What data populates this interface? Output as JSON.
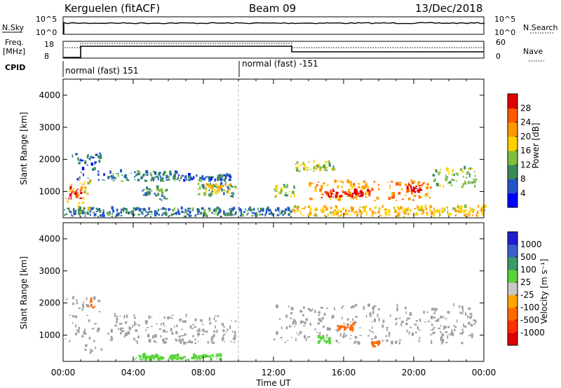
{
  "header": {
    "station": "Kerguelen (fitACF)",
    "beam": "Beam 09",
    "date": "13/Dec/2018"
  },
  "top_panels": {
    "nsky_label": "N.Sky",
    "nsearch_label": "N.Search",
    "nsky_ticks": [
      "10^5",
      "10^0"
    ],
    "nsearch_ticks": [
      "10^5",
      "10^0"
    ],
    "freq_label_1": "Freq.",
    "freq_label_2": "[MHz]",
    "freq_ticks": [
      "18",
      "8"
    ],
    "nave_label": "Nave",
    "nave_ticks": [
      "60",
      "0"
    ],
    "cpid_label": "CPID",
    "cpid_modes": [
      "normal (fast) 151",
      "normal (fast) -151"
    ]
  },
  "colors": {
    "scale": [
      "#0000ff",
      "#2255cc",
      "#3a8a5a",
      "#7fbf3f",
      "#ffd200",
      "#ff9900",
      "#ff5a00",
      "#e00000"
    ],
    "velocity_scale": [
      "#1e1ed2",
      "#3a5fcd",
      "#3c9a6a",
      "#5ad23a",
      "#c8c8c8",
      "#ffa500",
      "#ff6a00",
      "#ff3000",
      "#e00000"
    ],
    "ground": "#a0a0a0"
  },
  "chart_data": [
    {
      "type": "heatmap",
      "panel": "power",
      "ylabel": "Slant Range [km]",
      "xlim": [
        "00:00",
        "24:00"
      ],
      "ylim": [
        180,
        4500
      ],
      "x_ticks": [
        "00:00",
        "04:00",
        "08:00",
        "12:00",
        "16:00",
        "20:00",
        "00:00"
      ],
      "y_ticks": [
        1000,
        2000,
        3000,
        4000
      ],
      "colorbar_label": "Power [dB]",
      "colorbar_ticks": [
        4,
        8,
        12,
        16,
        20,
        24,
        28
      ],
      "colorbar_range": [
        0,
        30
      ],
      "regions": [
        {
          "t0": 0.1,
          "t1": 1.5,
          "r0": 400,
          "r1": 1300,
          "value": 18
        },
        {
          "t0": 0.3,
          "t1": 1.0,
          "r0": 700,
          "r1": 1100,
          "value": 26
        },
        {
          "t0": 0.5,
          "t1": 2.3,
          "r0": 1300,
          "r1": 2200,
          "value": 6
        },
        {
          "t0": 2.5,
          "t1": 6.5,
          "r0": 1300,
          "r1": 1600,
          "value": 8
        },
        {
          "t0": 4.5,
          "t1": 6.0,
          "r0": 700,
          "r1": 1100,
          "value": 10
        },
        {
          "t0": 6.5,
          "t1": 9.5,
          "r0": 1300,
          "r1": 1500,
          "value": 6
        },
        {
          "t0": 7.5,
          "t1": 9.8,
          "r0": 800,
          "r1": 1200,
          "value": 10
        },
        {
          "t0": 8.0,
          "t1": 9.5,
          "r0": 900,
          "r1": 1200,
          "value": 18
        },
        {
          "t0": 12.0,
          "t1": 13.2,
          "r0": 800,
          "r1": 1200,
          "value": 14
        },
        {
          "t0": 13.2,
          "t1": 15.5,
          "r0": 1600,
          "r1": 1900,
          "value": 14
        },
        {
          "t0": 14.0,
          "t1": 18.0,
          "r0": 700,
          "r1": 1300,
          "value": 20
        },
        {
          "t0": 14.8,
          "t1": 17.5,
          "r0": 800,
          "r1": 1000,
          "value": 28
        },
        {
          "t0": 18.5,
          "t1": 21.0,
          "r0": 700,
          "r1": 1300,
          "value": 22
        },
        {
          "t0": 19.5,
          "t1": 20.5,
          "r0": 900,
          "r1": 1200,
          "value": 27
        },
        {
          "t0": 21.0,
          "t1": 23.5,
          "r0": 1100,
          "r1": 1700,
          "value": 12
        },
        {
          "t0": 13.0,
          "t1": 24.0,
          "r0": 200,
          "r1": 500,
          "value": 18
        },
        {
          "t0": 0.0,
          "t1": 13.0,
          "r0": 200,
          "r1": 450,
          "value": 8
        }
      ]
    },
    {
      "type": "heatmap",
      "panel": "velocity",
      "ylabel": "Slant Range [km]",
      "xlabel": "Time UT",
      "xlim": [
        "00:00",
        "24:00"
      ],
      "ylim": [
        180,
        4500
      ],
      "x_ticks": [
        "00:00",
        "04:00",
        "08:00",
        "12:00",
        "16:00",
        "20:00",
        "00:00"
      ],
      "y_ticks": [
        1000,
        2000,
        3000,
        4000
      ],
      "colorbar_label": "Velocity [m s⁻¹]",
      "colorbar_ticks": [
        "1000",
        "500",
        "100",
        "25",
        "-25",
        "-100",
        "-500",
        "-1000"
      ],
      "regions": [
        {
          "t0": 0.1,
          "t1": 2.3,
          "r0": 400,
          "r1": 2200,
          "value": 0
        },
        {
          "t0": 2.5,
          "t1": 9.8,
          "r0": 700,
          "r1": 1600,
          "value": 0
        },
        {
          "t0": 12.0,
          "t1": 23.5,
          "r0": 700,
          "r1": 1900,
          "value": 0
        },
        {
          "t0": 15.5,
          "t1": 16.5,
          "r0": 1100,
          "r1": 1300,
          "value": -150
        },
        {
          "t0": 14.5,
          "t1": 15.2,
          "r0": 700,
          "r1": 900,
          "value": 80
        },
        {
          "t0": 17.5,
          "t1": 18.0,
          "r0": 600,
          "r1": 750,
          "value": -200
        },
        {
          "t0": 4.0,
          "t1": 9.0,
          "r0": 200,
          "r1": 350,
          "value": 60
        },
        {
          "t0": 1.5,
          "t1": 1.8,
          "r0": 1800,
          "r1": 2100,
          "value": -300
        }
      ]
    }
  ]
}
